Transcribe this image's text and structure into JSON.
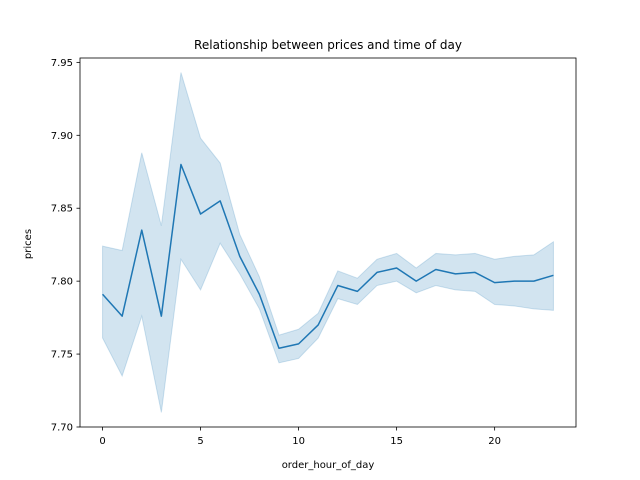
{
  "chart_data": {
    "type": "line",
    "title": "Relationship between prices and time of day",
    "xlabel": "order_hour_of_day",
    "ylabel": "prices",
    "xlim": [
      -1.15,
      24.15
    ],
    "ylim": [
      7.7,
      7.953
    ],
    "x_ticks": [
      0,
      5,
      10,
      15,
      20
    ],
    "x_tick_labels": [
      "0",
      "5",
      "10",
      "15",
      "20"
    ],
    "y_ticks": [
      7.7,
      7.75,
      7.8,
      7.85,
      7.9,
      7.95
    ],
    "y_tick_labels": [
      "7.70",
      "7.75",
      "7.80",
      "7.85",
      "7.90",
      "7.95"
    ],
    "grid": false,
    "legend": "none",
    "colors": {
      "line": "#1f77b4",
      "band": "#1f77b4"
    },
    "x": [
      0,
      1,
      2,
      3,
      4,
      5,
      6,
      7,
      8,
      9,
      10,
      11,
      12,
      13,
      14,
      15,
      16,
      17,
      18,
      19,
      20,
      21,
      22,
      23
    ],
    "y": [
      7.791,
      7.776,
      7.835,
      7.776,
      7.88,
      7.846,
      7.855,
      7.817,
      7.791,
      7.754,
      7.757,
      7.77,
      7.797,
      7.793,
      7.806,
      7.809,
      7.8,
      7.808,
      7.805,
      7.806,
      7.799,
      7.8,
      7.8,
      7.804
    ],
    "lower": [
      7.761,
      7.735,
      7.776,
      7.71,
      7.815,
      7.794,
      7.826,
      7.805,
      7.781,
      7.744,
      7.747,
      7.761,
      7.788,
      7.784,
      7.797,
      7.8,
      7.792,
      7.797,
      7.794,
      7.793,
      7.784,
      7.783,
      7.781,
      7.78
    ],
    "upper": [
      7.824,
      7.821,
      7.888,
      7.838,
      7.943,
      7.898,
      7.881,
      7.832,
      7.803,
      7.763,
      7.767,
      7.778,
      7.807,
      7.802,
      7.815,
      7.819,
      7.809,
      7.819,
      7.818,
      7.819,
      7.815,
      7.817,
      7.818,
      7.827
    ]
  }
}
